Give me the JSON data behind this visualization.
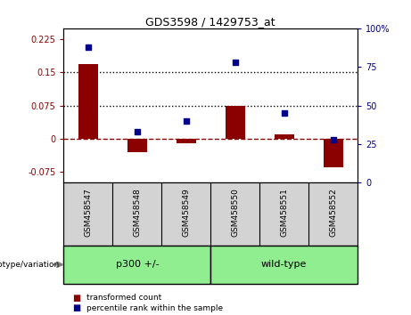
{
  "title": "GDS3598 / 1429753_at",
  "categories": [
    "GSM458547",
    "GSM458548",
    "GSM458549",
    "GSM458550",
    "GSM458551",
    "GSM458552"
  ],
  "red_values": [
    0.17,
    -0.03,
    -0.01,
    0.075,
    0.01,
    -0.065
  ],
  "blue_values": [
    88,
    33,
    40,
    78,
    45,
    28
  ],
  "ylim_left": [
    -0.1,
    0.25
  ],
  "ylim_right": [
    0,
    100
  ],
  "yticks_left": [
    -0.075,
    0,
    0.075,
    0.15,
    0.225
  ],
  "yticks_right": [
    0,
    25,
    50,
    75,
    100
  ],
  "hlines": [
    0.075,
    0.15
  ],
  "group_label": "genotype/variation",
  "group1_label": "p300 +/-",
  "group2_label": "wild-type",
  "group_color": "#90EE90",
  "bar_color": "#8B0000",
  "dot_color": "#00008B",
  "tick_bg_color": "#D3D3D3",
  "legend_red": "transformed count",
  "legend_blue": "percentile rank within the sample"
}
